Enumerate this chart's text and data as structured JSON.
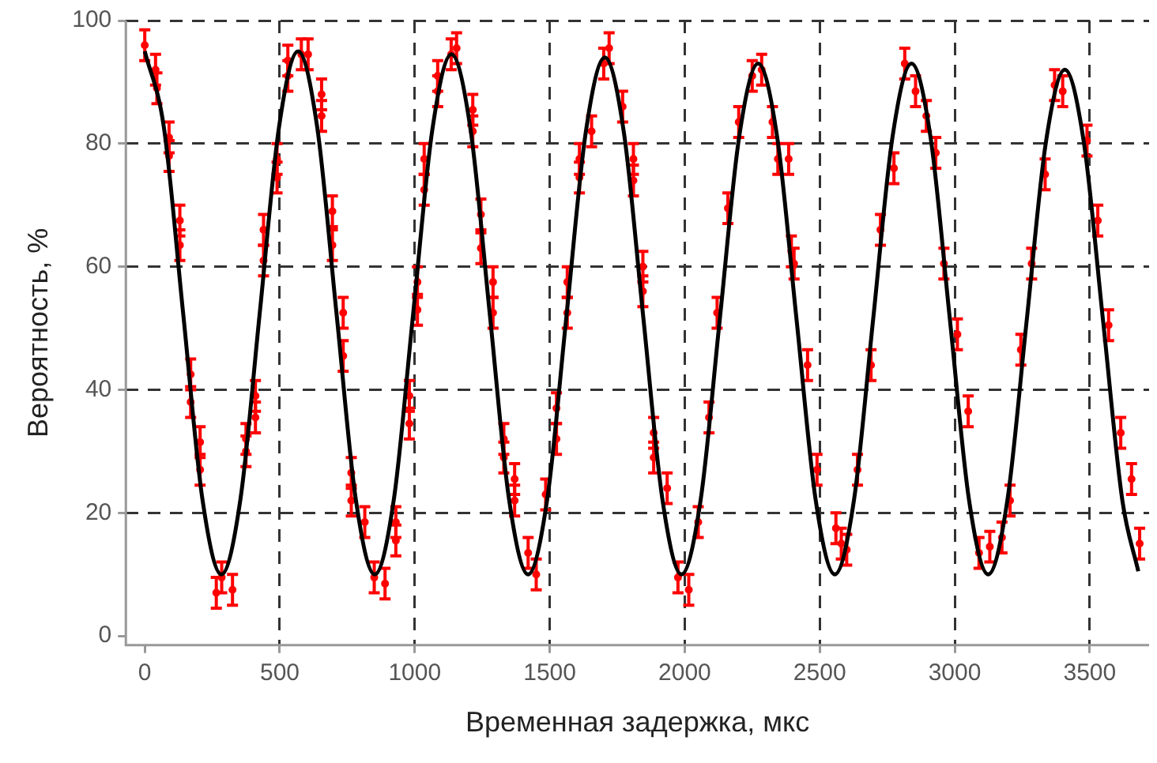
{
  "chart_data": {
    "type": "scatter",
    "xlabel": "Временная задержка, мкс",
    "ylabel": "Вероятность, %",
    "xlim": [
      -70,
      3720
    ],
    "ylim": [
      -1.5,
      100
    ],
    "xticks": [
      0,
      500,
      1000,
      1500,
      2000,
      2500,
      3000,
      3500
    ],
    "yticks": [
      0,
      20,
      40,
      60,
      80,
      100
    ],
    "grid": true,
    "legend": false,
    "series": [
      {
        "marker": "circle",
        "color": "#ff0000",
        "x": [
          0,
          40,
          45,
          90,
          90,
          130,
          130,
          170,
          170,
          205,
          205,
          265,
          285,
          325,
          375,
          375,
          410,
          410,
          440,
          440,
          490,
          490,
          530,
          530,
          580,
          605,
          655,
          655,
          695,
          695,
          735,
          735,
          765,
          765,
          815,
          850,
          890,
          930,
          930,
          980,
          980,
          1010,
          1010,
          1035,
          1035,
          1085,
          1085,
          1135,
          1155,
          1215,
          1215,
          1245,
          1245,
          1290,
          1290,
          1330,
          1330,
          1370,
          1370,
          1420,
          1450,
          1485,
          1525,
          1525,
          1565,
          1565,
          1610,
          1610,
          1655,
          1700,
          1720,
          1770,
          1810,
          1810,
          1845,
          1845,
          1885,
          1885,
          1935,
          1975,
          2015,
          2050,
          2090,
          2120,
          2160,
          2200,
          2250,
          2285,
          2325,
          2345,
          2385,
          2395,
          2405,
          2455,
          2490,
          2560,
          2580,
          2600,
          2640,
          2690,
          2725,
          2775,
          2815,
          2855,
          2895,
          2930,
          2960,
          3010,
          3050,
          3090,
          3130,
          3175,
          3205,
          3245,
          3285,
          3335,
          3370,
          3400,
          3490,
          3530,
          3570,
          3615,
          3655,
          3685
        ],
        "values": [
          96,
          92,
          89,
          81,
          78,
          67.5,
          63.5,
          42.5,
          38,
          31.5,
          27,
          7,
          9.5,
          7.5,
          32,
          30,
          39,
          35.5,
          66,
          61,
          77.5,
          74.5,
          91,
          93.5,
          94.5,
          94.5,
          88,
          84.5,
          69,
          63.5,
          52.5,
          45.5,
          26.5,
          22,
          18.5,
          9.5,
          8.5,
          18.5,
          15.5,
          39,
          34.5,
          57.5,
          53,
          77.5,
          72.5,
          91,
          88.5,
          94.5,
          95.5,
          85.5,
          82,
          68.5,
          63,
          57.5,
          52.5,
          32,
          29,
          25.5,
          22,
          13.5,
          10,
          23,
          37,
          32,
          57.5,
          52.5,
          77.5,
          74.5,
          82,
          93,
          95.5,
          86,
          77.5,
          74,
          60,
          56,
          33,
          29,
          24,
          9.5,
          7.5,
          18.5,
          35.5,
          52.5,
          69.5,
          83.5,
          91,
          92,
          83.5,
          77.5,
          77.5,
          62.5,
          60.5,
          44,
          27,
          17.5,
          15,
          14,
          27,
          44,
          66,
          76,
          93,
          88.5,
          84.5,
          78.5,
          60.5,
          49,
          36.5,
          13.5,
          14.5,
          16,
          22,
          46.5,
          60.5,
          75,
          89.5,
          88.5,
          80.5,
          67.5,
          50.5,
          33,
          25.5,
          15
        ],
        "errors": [
          2.5,
          2.5,
          2.5,
          2.5,
          2.5,
          2.5,
          2.5,
          2.5,
          2.5,
          2.5,
          2.5,
          2.5,
          2.5,
          2.5,
          2.5,
          2.5,
          2.5,
          2.5,
          2.5,
          2.5,
          2.5,
          2.5,
          2.5,
          2.5,
          2.5,
          2.5,
          2.5,
          2.5,
          2.5,
          2.5,
          2.5,
          2.5,
          2.5,
          2.5,
          2.5,
          2.5,
          2.5,
          2.5,
          2.5,
          2.5,
          2.5,
          2.5,
          2.5,
          2.5,
          2.5,
          2.5,
          2.5,
          2.5,
          2.5,
          2.5,
          2.5,
          2.5,
          2.5,
          2.5,
          2.5,
          2.5,
          2.5,
          2.5,
          2.5,
          2.5,
          2.5,
          2.5,
          2.5,
          2.5,
          2.5,
          2.5,
          2.5,
          2.5,
          2.5,
          2.5,
          2.5,
          2.5,
          2.5,
          2.5,
          2.5,
          2.5,
          2.5,
          2.5,
          2.5,
          2.5,
          2.5,
          2.5,
          2.5,
          2.5,
          2.5,
          2.5,
          2.5,
          2.5,
          2.5,
          2.5,
          2.5,
          2.5,
          2.5,
          2.5,
          2.5,
          2.5,
          2.5,
          2.5,
          2.5,
          2.5,
          2.5,
          2.5,
          2.5,
          2.5,
          2.5,
          2.5,
          2.5,
          2.5,
          2.5,
          2.5,
          2.5,
          2.5,
          2.5,
          2.5,
          2.5,
          2.5,
          2.5,
          2.5,
          2.5,
          2.5,
          2.5,
          2.5,
          2.5,
          2.5
        ]
      },
      {
        "type": "line",
        "marker": "none",
        "color": "#000000",
        "x": [
          0,
          71,
          142,
          213,
          284,
          355,
          426,
          497,
          568,
          639,
          710,
          781,
          852,
          923,
          994,
          1065,
          1136,
          1207,
          1278,
          1349,
          1420,
          1491,
          1562,
          1633,
          1704,
          1775,
          1846,
          1917,
          1988,
          2059,
          2130,
          2201,
          2272,
          2343,
          2414,
          2485,
          2556,
          2627,
          2698,
          2769,
          2840,
          2911,
          2982,
          3053,
          3124,
          3195,
          3266,
          3337,
          3408,
          3479,
          3550,
          3621,
          3680
        ],
        "values": [
          95,
          82.6,
          52.5,
          22.4,
          10,
          22.4,
          52.5,
          82.6,
          95,
          82.6,
          52.5,
          22.4,
          10,
          22.3,
          52.3,
          82.2,
          94.5,
          82.2,
          52.3,
          22.3,
          10,
          22.3,
          52,
          81.7,
          94,
          81.7,
          52,
          22.3,
          10,
          22.1,
          51.5,
          80.9,
          93,
          80.9,
          51.5,
          22.1,
          10,
          22.1,
          51.5,
          80.9,
          93,
          80.9,
          51.5,
          22.1,
          10,
          22,
          51,
          80,
          92,
          80,
          51,
          22,
          10.5
        ]
      }
    ]
  }
}
